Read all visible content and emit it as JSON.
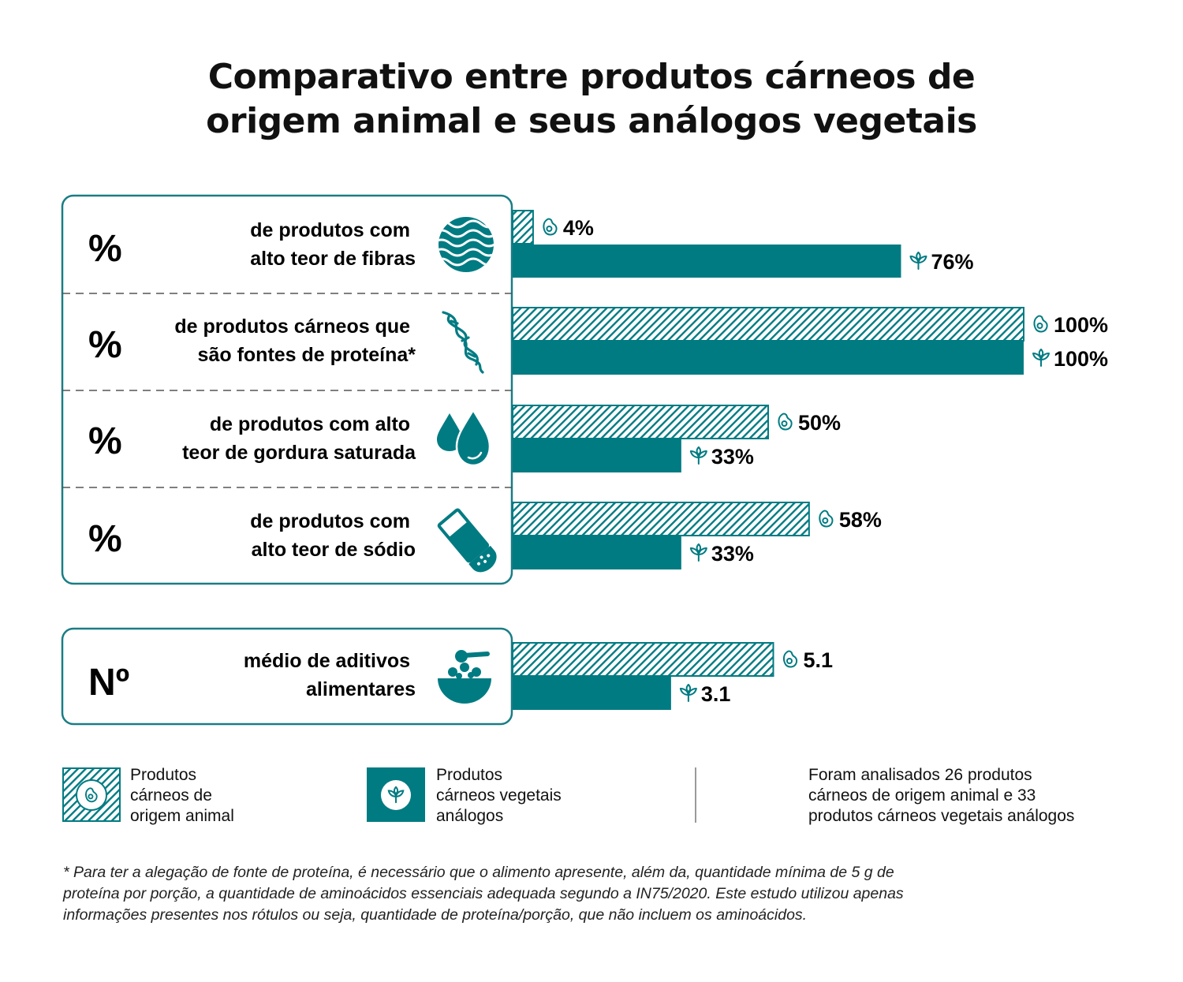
{
  "title": {
    "line1": "Comparativo entre produtos cárneos de",
    "line2": "origem animal e seus análogos vegetais"
  },
  "colors": {
    "accent": "#007b82",
    "border": "#1a7d85",
    "hatch_bg": "#ffffff",
    "text": "#111111"
  },
  "chart_data": {
    "type": "bar",
    "orientation": "horizontal",
    "categories": [
      "de produtos com alto teor de fibras",
      "de produtos cárneos que são fontes de proteína*",
      "de produtos  com alto teor de gordura saturada",
      "de produtos com alto teor de sódio",
      "médio de aditivos alimentares"
    ],
    "series": [
      {
        "name": "Produtos cárneos de origem animal",
        "pattern": "hatched",
        "values": [
          4,
          100,
          50,
          58,
          5.1
        ]
      },
      {
        "name": "Produtos cárneos vegetais análogos",
        "pattern": "solid",
        "values": [
          76,
          100,
          33,
          33,
          3.1
        ]
      }
    ],
    "value_labels": {
      "animal": [
        "4%",
        "100%",
        "50%",
        "58%",
        "5.1"
      ],
      "vegetal": [
        "76%",
        "100%",
        "33%",
        "33%",
        "3.1"
      ]
    },
    "scale_max": [
      100,
      100,
      100,
      100,
      10
    ],
    "rows": [
      {
        "metric": "%",
        "desc": [
          "de produtos com",
          "alto teor de fibras"
        ],
        "icon": "fiber-icon"
      },
      {
        "metric": "%",
        "desc": [
          "de produtos cárneos que",
          "são fontes de proteína*"
        ],
        "icon": "protein-helix-icon"
      },
      {
        "metric": "%",
        "desc": [
          "de produtos  com alto",
          "teor de gordura saturada"
        ],
        "icon": "fat-drops-icon"
      },
      {
        "metric": "%",
        "desc": [
          "de produtos com",
          "alto teor de sódio"
        ],
        "icon": "salt-shaker-icon"
      },
      {
        "metric": "Nº",
        "desc": [
          "médio de aditivos",
          "alimentares"
        ],
        "icon": "additives-bowl-icon"
      }
    ],
    "legend_placement": "bottom-left",
    "grid": false
  },
  "legend": {
    "animal": {
      "lines": [
        "Produtos",
        "cárneos de",
        "origem animal"
      ],
      "icon": "meat-icon"
    },
    "vegetal": {
      "lines": [
        "Produtos",
        "cárneos vegetais",
        "análogos"
      ],
      "icon": "sprout-icon"
    }
  },
  "note": {
    "lines": [
      "Foram analisados 26 produtos",
      "cárneos de origem animal e 33",
      "produtos cárneos vegetais análogos"
    ]
  },
  "footnote": {
    "lines": [
      "* Para ter a alegação de fonte de proteína, é necessário que o alimento apresente, além da, quantidade mínima de 5 g de",
      "proteína por porção, a quantidade de aminoácidos essenciais adequada segundo a IN75/2020. Este estudo utilizou apenas",
      "informações presentes nos rótulos ou seja, quantidade de proteína/porção, que não incluem os aminoácidos."
    ]
  }
}
